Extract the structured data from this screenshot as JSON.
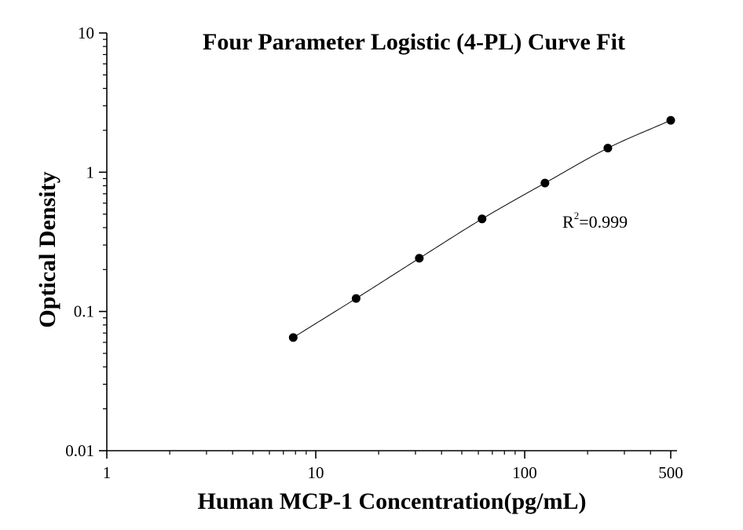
{
  "chart_data": {
    "type": "scatter",
    "title": "Four Parameter Logistic (4-PL) Curve Fit",
    "xlabel": "Human MCP-1 Concentration(pg/mL)",
    "ylabel": "Optical Density",
    "x_scale": "log",
    "y_scale": "log",
    "xlim": [
      1,
      500
    ],
    "ylim": [
      0.01,
      10
    ],
    "x_ticks": [
      {
        "value": 1,
        "label": "1"
      },
      {
        "value": 10,
        "label": "10"
      },
      {
        "value": 100,
        "label": "100"
      },
      {
        "value": 500,
        "label": "500"
      }
    ],
    "y_ticks": [
      {
        "value": 0.01,
        "label": "0.01"
      },
      {
        "value": 0.1,
        "label": "0.1"
      },
      {
        "value": 1,
        "label": "1"
      },
      {
        "value": 10,
        "label": "10"
      }
    ],
    "grid": false,
    "legend": "none",
    "series": [
      {
        "x": [
          7.8,
          15.6,
          31.3,
          62.5,
          125,
          250,
          500
        ],
        "y": [
          0.065,
          0.124,
          0.241,
          0.462,
          0.836,
          1.49,
          2.36
        ]
      }
    ],
    "fit_curve": {
      "model": "4-PL",
      "x": [
        7.8,
        15.6,
        31.3,
        62.5,
        125,
        250,
        500
      ],
      "y": [
        0.065,
        0.124,
        0.241,
        0.462,
        0.836,
        1.49,
        2.36
      ]
    },
    "annotations": [
      {
        "text": "R",
        "superscript": "2",
        "suffix": "=0.999"
      }
    ],
    "colors": {
      "marker": "#000000",
      "curve": "#000000",
      "axis": "#000000"
    }
  }
}
